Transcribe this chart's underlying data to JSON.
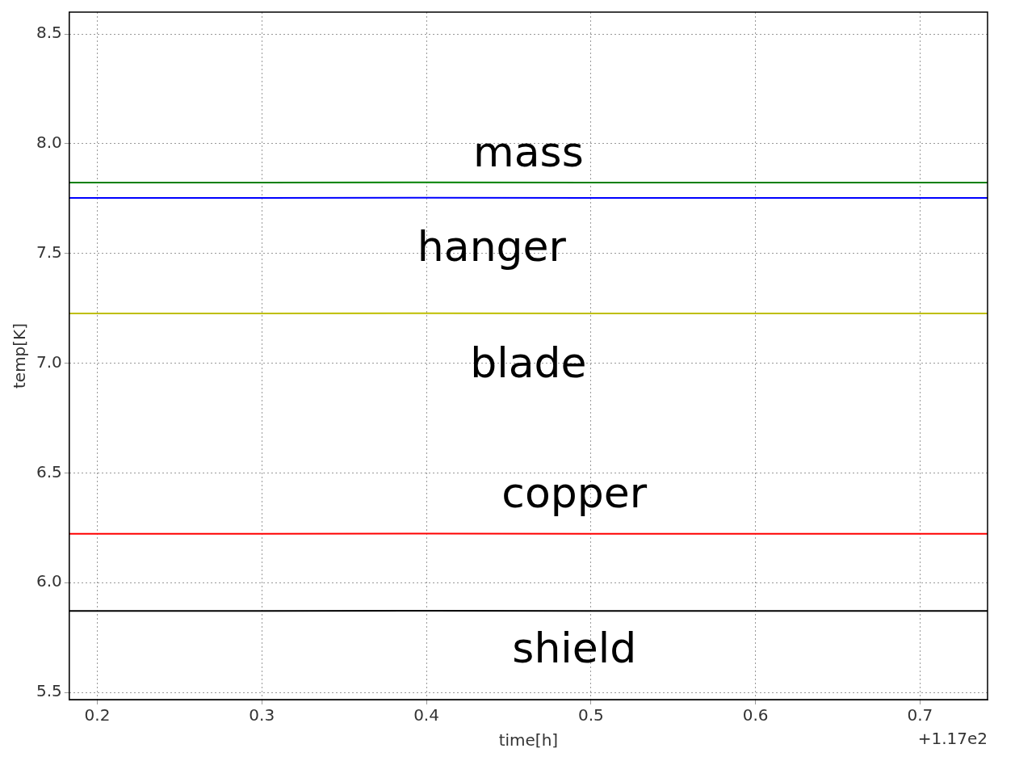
{
  "chart_data": {
    "type": "line",
    "xlabel": "time[h]",
    "ylabel": "temp[K]",
    "x": [
      0.183,
      0.3,
      0.4,
      0.5,
      0.6,
      0.741
    ],
    "series": [
      {
        "name": "mass",
        "color": "#008000",
        "values": [
          7.823,
          7.823,
          7.824,
          7.823,
          7.823,
          7.823
        ]
      },
      {
        "name": "hanger",
        "color": "#0000ff",
        "values": [
          7.753,
          7.753,
          7.754,
          7.753,
          7.753,
          7.753
        ]
      },
      {
        "name": "blade",
        "color": "#bfbf00",
        "values": [
          7.227,
          7.227,
          7.228,
          7.227,
          7.227,
          7.227
        ]
      },
      {
        "name": "copper",
        "color": "#ff0000",
        "values": [
          6.223,
          6.223,
          6.224,
          6.223,
          6.223,
          6.223
        ]
      },
      {
        "name": "shield",
        "color": "#000000",
        "values": [
          5.871,
          5.871,
          5.872,
          5.871,
          5.871,
          5.871
        ]
      }
    ],
    "xlim": [
      0.183,
      0.741
    ],
    "xticks": [
      0.2,
      0.3,
      0.4,
      0.5,
      0.6,
      0.7
    ],
    "ylim": [
      5.467,
      8.6
    ],
    "yticks": [
      5.5,
      {
        "value": 6,
        "label": "6.0"
      },
      6.5,
      {
        "value": 7,
        "label": "7.0"
      },
      7.5,
      {
        "value": 8,
        "label": "8.0"
      },
      8.5
    ],
    "annotations": [
      "+1.17e2"
    ],
    "grid": true,
    "legend": false,
    "marker": "none",
    "line_style": "solid"
  }
}
